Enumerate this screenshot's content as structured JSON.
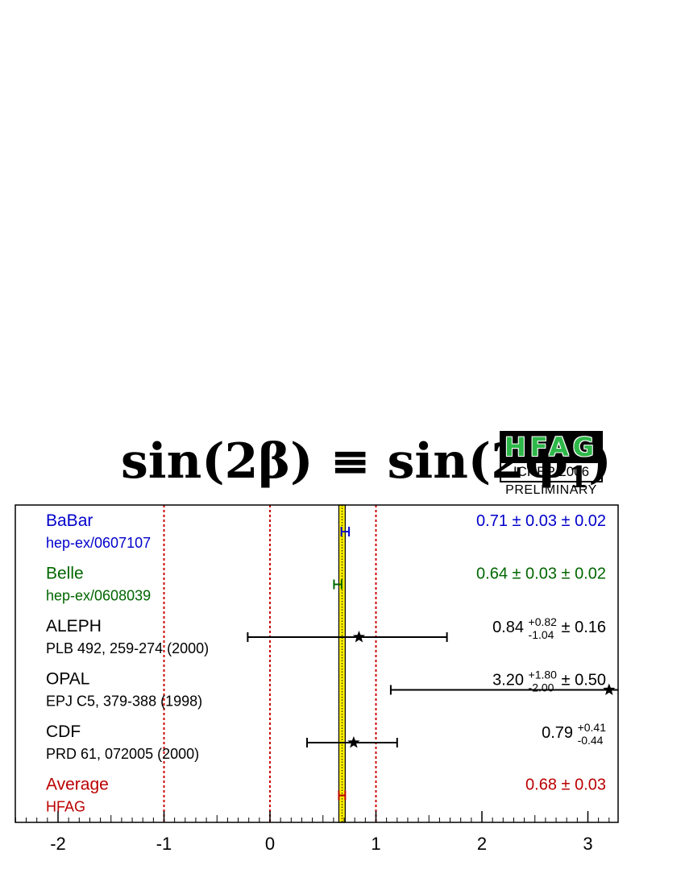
{
  "title": {
    "main": "sin(2β) ≡ sin(2φ",
    "subscript": "1",
    "close": ")"
  },
  "logo": {
    "name": "HFAG",
    "conference": "ICHEP 2006",
    "status": "PRELIMINARY"
  },
  "chart_data": {
    "type": "scatter",
    "orientation": "horizontal-error-bars",
    "xlim": [
      -2.4,
      3.3
    ],
    "xticks": [
      -2,
      -1,
      0,
      1,
      2,
      3
    ],
    "xtick_labels": [
      "-2",
      "-1",
      "0",
      "1",
      "2",
      "3"
    ],
    "xlabel": "",
    "ylabel": "",
    "grid": false,
    "reference_lines": [
      {
        "x": -1,
        "style": "dotted",
        "color": "#cc0000"
      },
      {
        "x": 0,
        "style": "dotted",
        "color": "#cc0000"
      },
      {
        "x": 1,
        "style": "dotted",
        "color": "#cc0000"
      }
    ],
    "average_band": {
      "value": 0.68,
      "error": 0.03,
      "fill": "#ffee00",
      "line": "#000000"
    },
    "entries": [
      {
        "name": "BaBar",
        "reference": "hep-ex/0607107",
        "value": 0.71,
        "err_lo": 0.036,
        "err_hi": 0.036,
        "marker": "error-bar",
        "color": "#0000cc",
        "label_main": "0.71 ± 0.03 ± 0.02"
      },
      {
        "name": "Belle",
        "reference": "hep-ex/0608039",
        "value": 0.64,
        "err_lo": 0.036,
        "err_hi": 0.036,
        "marker": "error-bar",
        "color": "#006600",
        "label_main": "0.64 ± 0.03 ± 0.02"
      },
      {
        "name": "ALEPH",
        "reference": "PLB 492, 259-274 (2000)",
        "value": 0.84,
        "err_lo": 1.05,
        "err_hi": 0.83,
        "marker": "star",
        "color": "#000000",
        "label_main": "0.84",
        "label_sup": "+0.82",
        "label_sub": "-1.04",
        "label_tail": " ± 0.16"
      },
      {
        "name": "OPAL",
        "reference": "EPJ C5, 379-388 (1998)",
        "value": 3.2,
        "err_lo": 2.06,
        "err_hi": 1.87,
        "marker": "star",
        "color": "#000000",
        "label_main": "3.20",
        "label_sup": "+1.80",
        "label_sub": "-2.00",
        "label_tail": " ± 0.50"
      },
      {
        "name": "CDF",
        "reference": "PRD 61, 072005 (2000)",
        "value": 0.79,
        "err_lo": 0.44,
        "err_hi": 0.41,
        "marker": "star",
        "color": "#000000",
        "label_main": "0.79",
        "label_sup": "+0.41",
        "label_sub": "-0.44",
        "label_tail": ""
      },
      {
        "name": "Average",
        "reference": "HFAG",
        "value": 0.68,
        "err_lo": 0.03,
        "err_hi": 0.03,
        "marker": "error-bar",
        "color": "#bb0000",
        "label_main": "0.68 ± 0.03"
      }
    ]
  }
}
